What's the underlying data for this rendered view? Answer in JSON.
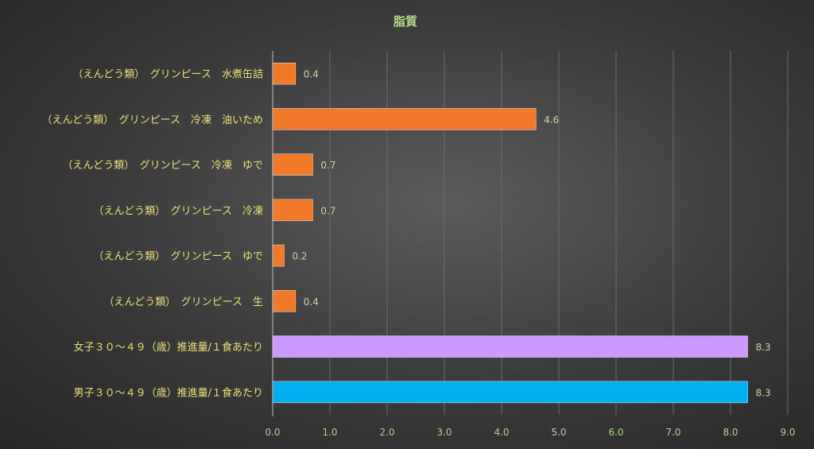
{
  "chart_data": {
    "type": "bar",
    "orientation": "horizontal",
    "title": "脂質",
    "categories": [
      "（えんどう類）　グリンピース　水煮缶詰",
      "（えんどう類）　グリンピース　冷凍　油いため",
      "（えんどう類）　グリンピース　冷凍　ゆで",
      "（えんどう類）　グリンピース　冷凍",
      "（えんどう類）　グリンピース　ゆで",
      "（えんどう類）　グリンピース　生",
      "女子３０～４９（歳）推進量/１食あたり",
      "男子３０～４９（歳）推進量/１食あたり"
    ],
    "values": [
      0.4,
      4.6,
      0.7,
      0.7,
      0.2,
      0.4,
      8.3,
      8.3
    ],
    "value_labels": [
      "0.4",
      "4.6",
      "0.7",
      "0.7",
      "0.2",
      "0.4",
      "8.3",
      "8.3"
    ],
    "bar_colors": [
      "#f07a2a",
      "#f07a2a",
      "#f07a2a",
      "#f07a2a",
      "#f07a2a",
      "#f07a2a",
      "#cc99ff",
      "#00b0f0"
    ],
    "xlim": [
      0,
      9
    ],
    "ticks": [
      "0.0",
      "1.0",
      "2.0",
      "3.0",
      "4.0",
      "5.0",
      "6.0",
      "7.0",
      "8.0",
      "9.0"
    ],
    "grid": true,
    "xlabel": "",
    "ylabel": ""
  }
}
